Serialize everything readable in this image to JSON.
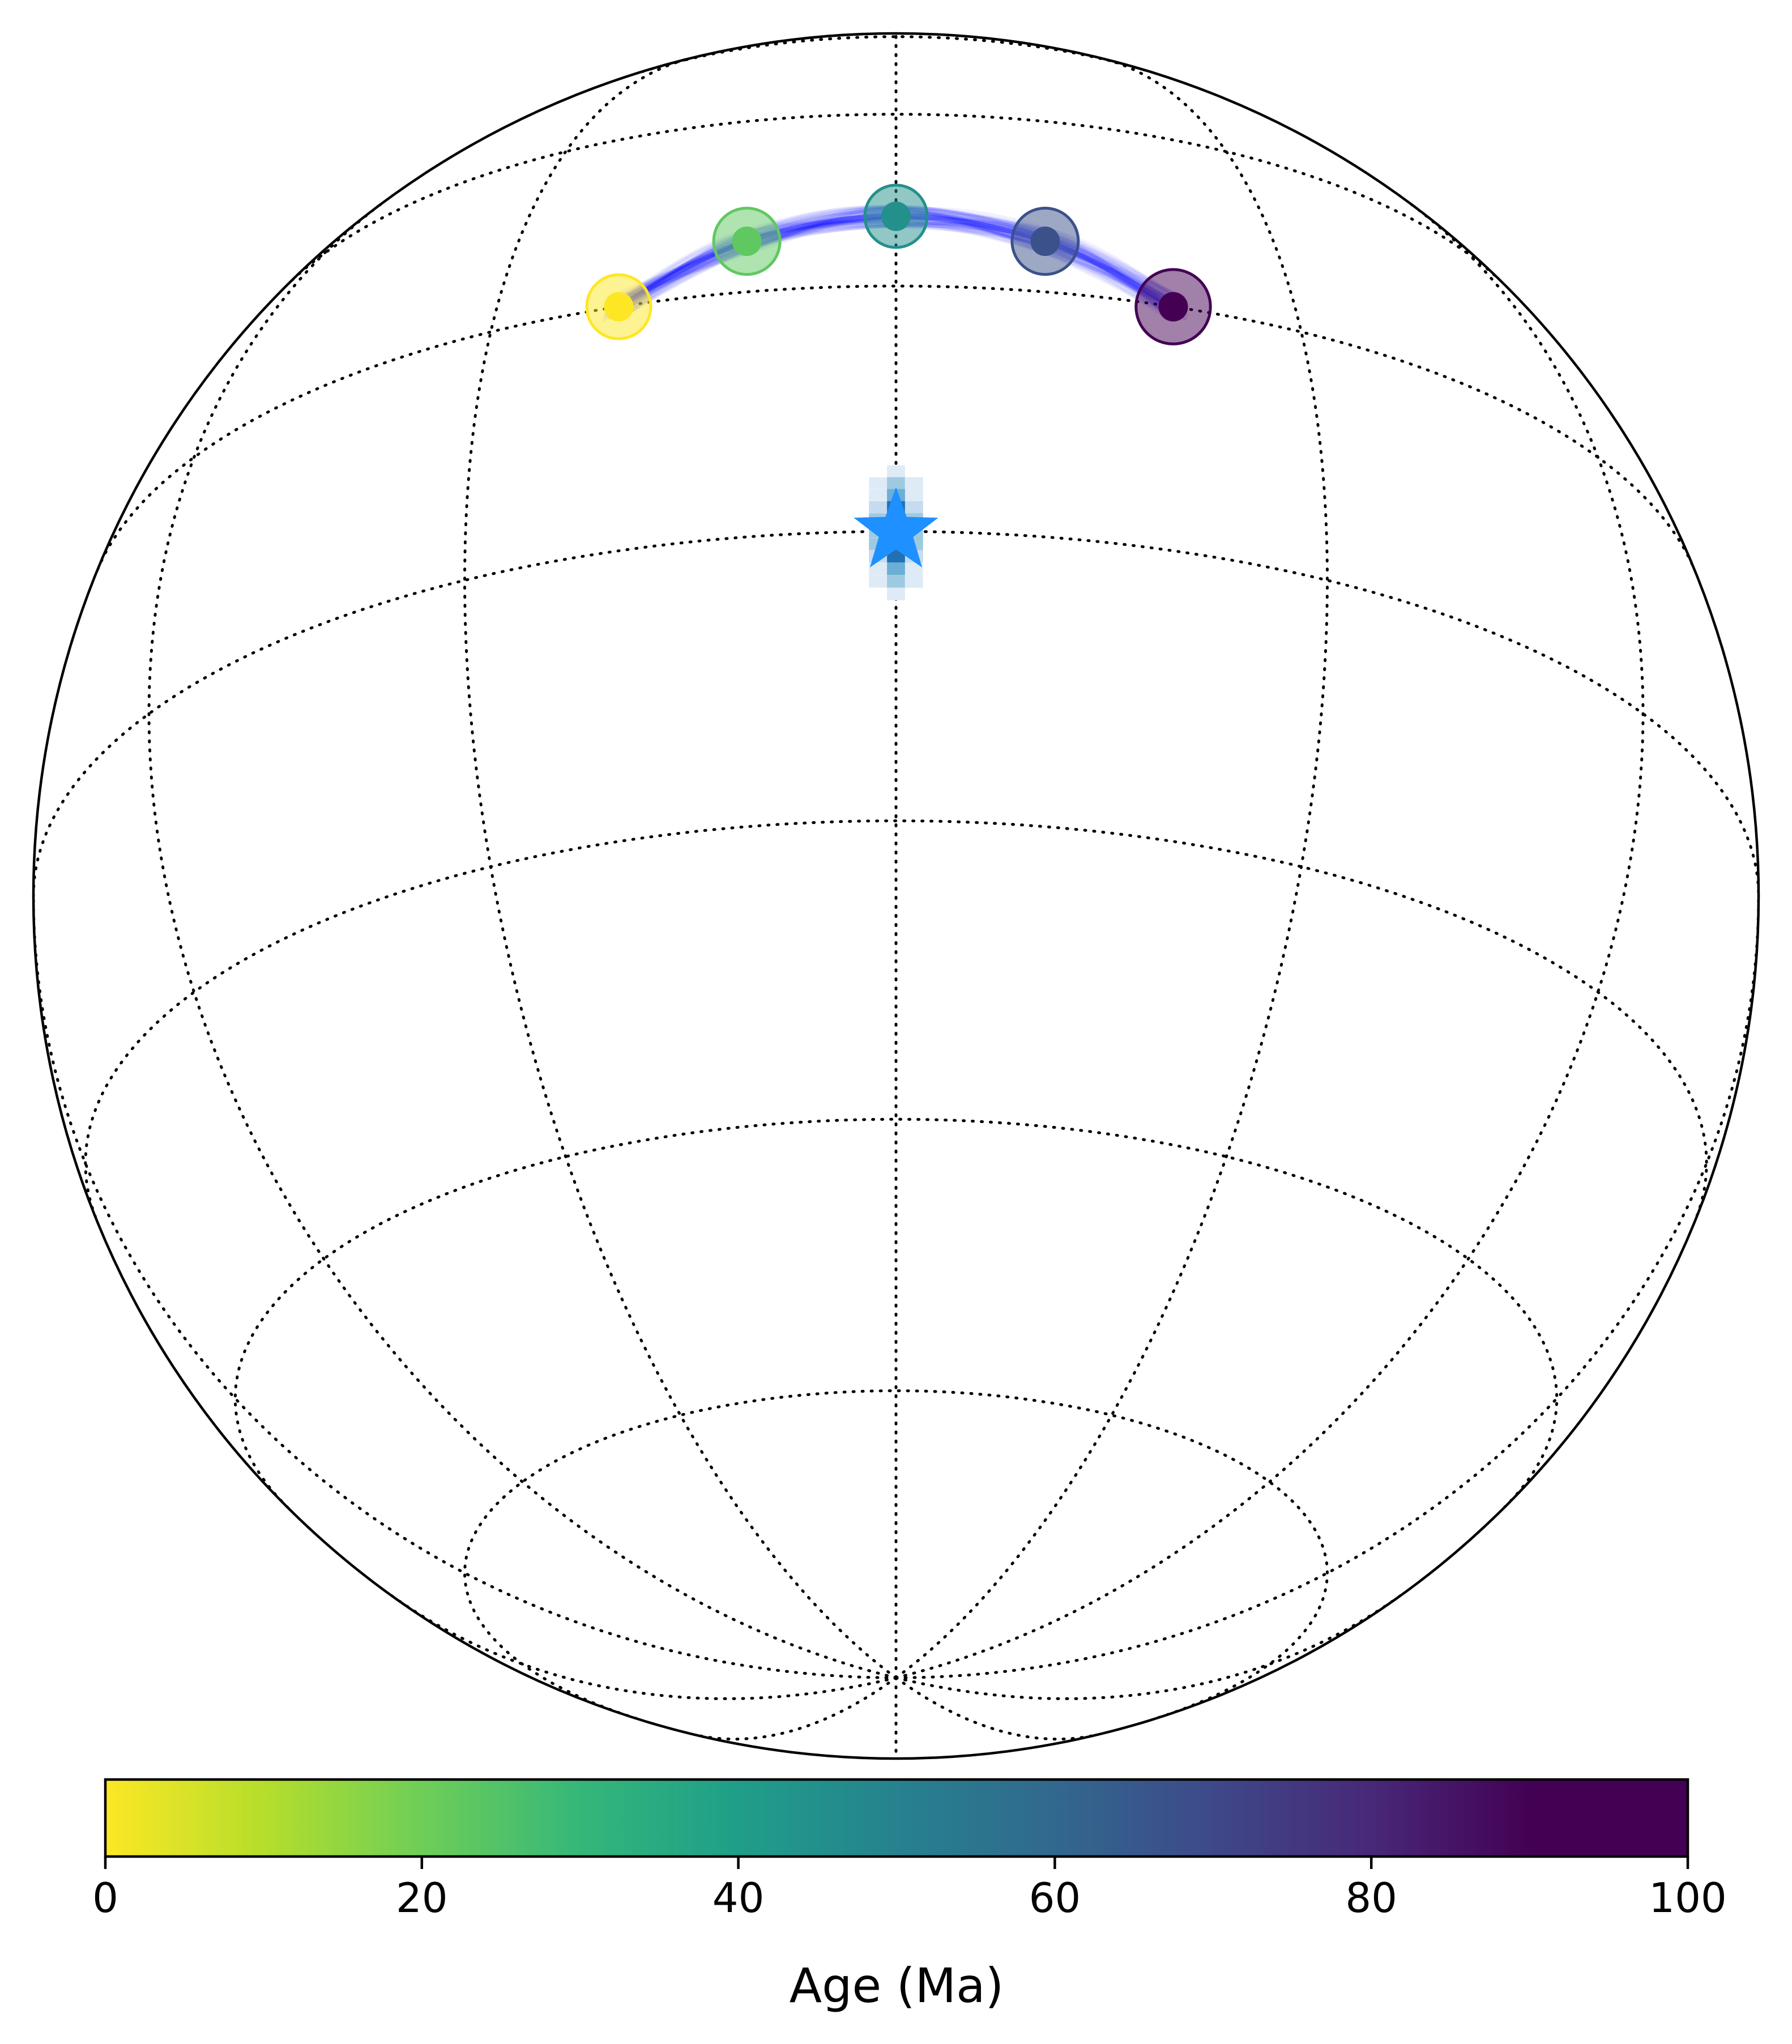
{
  "chart_data": {
    "type": "scatter",
    "projection": "orthographic",
    "title": "",
    "grid": true,
    "grid_style": "dotted",
    "pole_path": {
      "color": "#0000ff",
      "points": [
        {
          "age": 0,
          "lon": -20,
          "lat": 20,
          "a95": 3
        },
        {
          "age": 25,
          "lon": -11,
          "lat": 25,
          "a95": 3.5
        },
        {
          "age": 50,
          "lon": 0,
          "lat": 27,
          "a95": 3.5
        },
        {
          "age": 75,
          "lon": 11,
          "lat": 25,
          "a95": 3.5
        },
        {
          "age": 100,
          "lon": 20,
          "lat": 20,
          "a95": 3.5
        }
      ]
    },
    "site": {
      "marker": "star",
      "color": "#1e90ff",
      "lon": 0,
      "lat": 0
    },
    "site_density": {
      "colormap": "Blues"
    },
    "colorbar": {
      "label": "Age (Ma)",
      "colormap": "viridis_r",
      "range": [
        0,
        100
      ],
      "ticks": [
        "0",
        "20",
        "40",
        "60",
        "80",
        "100"
      ]
    }
  }
}
